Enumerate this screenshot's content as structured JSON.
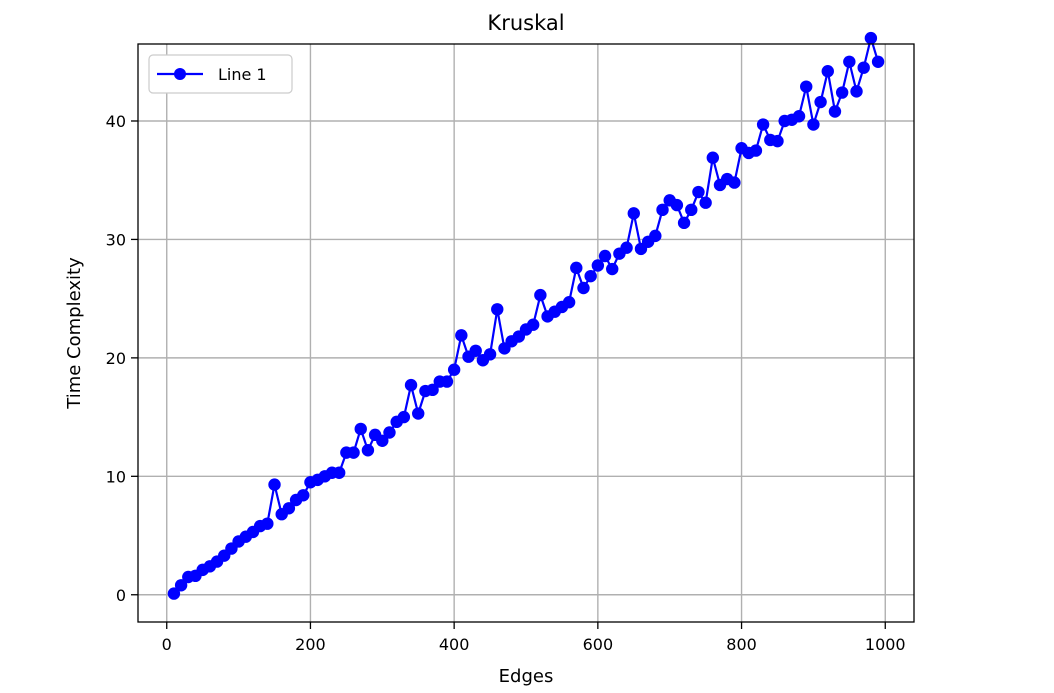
{
  "chart_data": {
    "type": "line",
    "title": "Kruskal",
    "xlabel": "Edges",
    "ylabel": "Time Complexity",
    "xlim": [
      -40,
      1040
    ],
    "ylim": [
      -2.3,
      46.5
    ],
    "xticks": [
      0,
      200,
      400,
      600,
      800,
      1000
    ],
    "yticks": [
      0,
      10,
      20,
      30,
      40
    ],
    "grid": true,
    "legend_position": "top-left",
    "series": [
      {
        "name": "Line 1",
        "color": "#0000ff",
        "marker": "circle",
        "x": [
          10,
          20,
          30,
          40,
          50,
          60,
          70,
          80,
          90,
          100,
          110,
          120,
          130,
          140,
          150,
          160,
          170,
          180,
          190,
          200,
          210,
          220,
          230,
          240,
          250,
          260,
          270,
          280,
          290,
          300,
          310,
          320,
          330,
          340,
          350,
          360,
          370,
          380,
          390,
          400,
          410,
          420,
          430,
          440,
          450,
          460,
          470,
          480,
          490,
          500,
          510,
          520,
          530,
          540,
          550,
          560,
          570,
          580,
          590,
          600,
          610,
          620,
          630,
          640,
          650,
          660,
          670,
          680,
          690,
          700,
          710,
          720,
          730,
          740,
          750,
          760,
          770,
          780,
          790,
          800,
          810,
          820,
          830,
          840,
          850,
          860,
          870,
          880,
          890,
          900,
          910,
          920,
          930,
          940,
          950,
          960,
          970,
          980,
          990
        ],
        "y": [
          0.1,
          0.8,
          1.5,
          1.6,
          2.1,
          2.4,
          2.8,
          3.3,
          3.9,
          4.5,
          4.9,
          5.3,
          5.8,
          6.0,
          9.3,
          6.8,
          7.3,
          8.0,
          8.4,
          9.5,
          9.7,
          10.0,
          10.3,
          10.3,
          12.0,
          12.0,
          14.0,
          12.2,
          13.5,
          13.0,
          13.7,
          14.6,
          15.0,
          17.7,
          15.3,
          17.2,
          17.3,
          18.0,
          18.0,
          19.0,
          21.9,
          20.1,
          20.6,
          19.8,
          20.3,
          24.1,
          20.8,
          21.4,
          21.8,
          22.4,
          22.8,
          25.3,
          23.5,
          23.9,
          24.3,
          24.7,
          27.6,
          25.9,
          26.9,
          27.8,
          28.6,
          27.5,
          28.8,
          29.3,
          32.2,
          29.2,
          29.8,
          30.3,
          32.5,
          33.3,
          32.9,
          31.4,
          32.5,
          34.0,
          33.1,
          36.9,
          34.6,
          35.1,
          34.8,
          37.7,
          37.3,
          37.5,
          39.7,
          38.4,
          38.3,
          40.0,
          40.1,
          40.4,
          42.9,
          39.7,
          41.6,
          44.2,
          40.8,
          42.4,
          45.0,
          42.5,
          44.5,
          47.0,
          45.0
        ]
      }
    ]
  }
}
